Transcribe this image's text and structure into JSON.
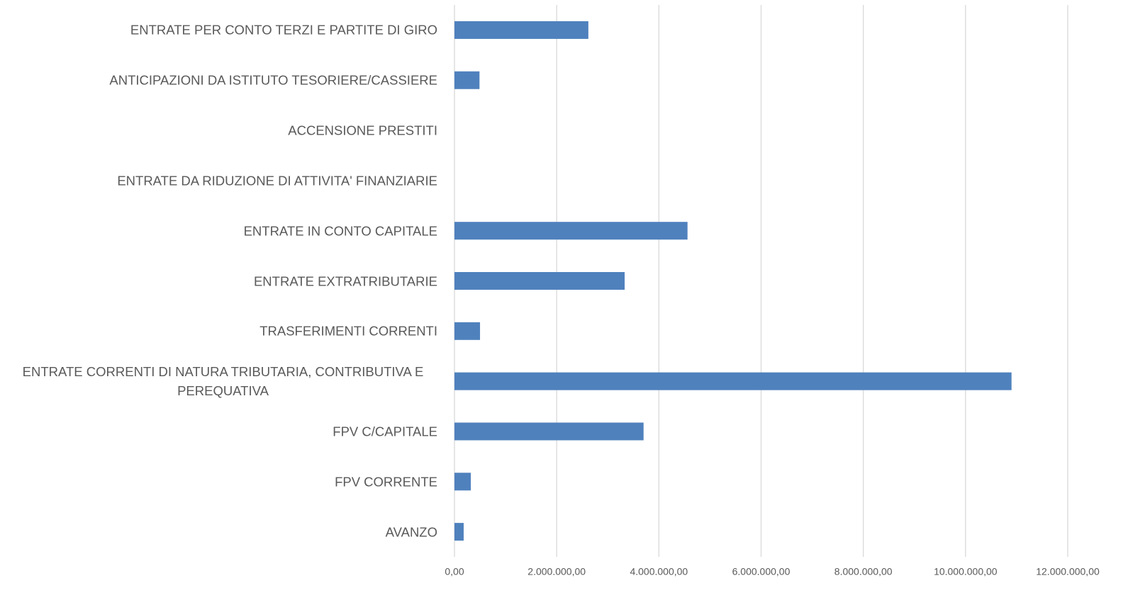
{
  "chart_data": {
    "type": "bar",
    "orientation": "horizontal",
    "categories": [
      "AVANZO",
      "FPV CORRENTE",
      "FPV C/CAPITALE",
      "ENTRATE CORRENTI DI NATURA TRIBUTARIA, CONTRIBUTIVA E PEREQUATIVA",
      "TRASFERIMENTI CORRENTI",
      "ENTRATE EXTRATRIBUTARIE",
      "ENTRATE IN CONTO CAPITALE",
      "ENTRATE DA RIDUZIONE DI ATTIVITA' FINANZIARIE",
      "ACCENSIONE PRESTITI",
      "ANTICIPAZIONI DA ISTITUTO TESORIERE/CASSIERE",
      "ENTRATE PER CONTO TERZI E PARTITE DI GIRO"
    ],
    "values": [
      180000,
      320000,
      3700000,
      10900000,
      500000,
      3330000,
      4560000,
      0,
      0,
      490000,
      2620000
    ],
    "color": "#4f81bd",
    "xlim": [
      0,
      12000000
    ],
    "xticks": [
      {
        "value": 0,
        "label": "0,00"
      },
      {
        "value": 2000000,
        "label": "2.000.000,00"
      },
      {
        "value": 4000000,
        "label": "4.000.000,00"
      },
      {
        "value": 6000000,
        "label": "6.000.000,00"
      },
      {
        "value": 8000000,
        "label": "8.000.000,00"
      },
      {
        "value": 10000000,
        "label": "10.000.000,00"
      },
      {
        "value": 12000000,
        "label": "12.000.000,00"
      }
    ],
    "grid": true
  }
}
